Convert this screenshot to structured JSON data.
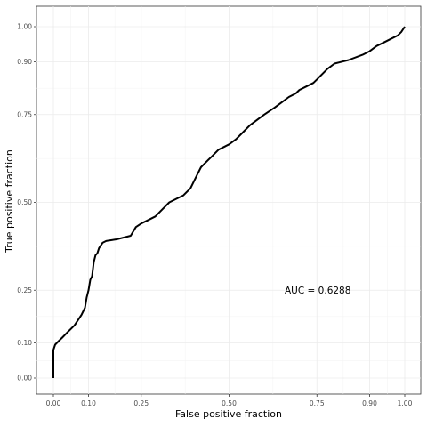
{
  "chart_data": {
    "type": "line",
    "title": "",
    "xlabel": "False positive fraction",
    "ylabel": "True positive fraction",
    "xlim": [
      0,
      1
    ],
    "ylim": [
      0,
      1
    ],
    "x_ticks": [
      0.0,
      0.1,
      0.25,
      0.5,
      0.75,
      0.9,
      1.0
    ],
    "y_ticks": [
      0.0,
      0.1,
      0.25,
      0.5,
      0.75,
      0.9,
      1.0
    ],
    "x_tick_labels": [
      "0.00",
      "0.10",
      "0.25",
      "0.50",
      "0.75",
      "0.90",
      "1.00"
    ],
    "y_tick_labels": [
      "0.00",
      "0.10",
      "0.25",
      "0.50",
      "0.75",
      "0.90",
      "1.00"
    ],
    "grid": true,
    "legend": "none",
    "annotation": "AUC = 0.6288",
    "series": [
      {
        "x": [
          0.0,
          0.0,
          0.005,
          0.015,
          0.025,
          0.04,
          0.06,
          0.07,
          0.08,
          0.09,
          0.095,
          0.1,
          0.105,
          0.11,
          0.115,
          0.12,
          0.125,
          0.13,
          0.14,
          0.15,
          0.16,
          0.18,
          0.2,
          0.22,
          0.235,
          0.25,
          0.27,
          0.29,
          0.31,
          0.33,
          0.35,
          0.37,
          0.39,
          0.4,
          0.41,
          0.42,
          0.43,
          0.44,
          0.45,
          0.47,
          0.49,
          0.5,
          0.52,
          0.54,
          0.56,
          0.58,
          0.6,
          0.63,
          0.65,
          0.67,
          0.69,
          0.7,
          0.72,
          0.74,
          0.75,
          0.76,
          0.78,
          0.8,
          0.84,
          0.88,
          0.9,
          0.92,
          0.94,
          0.96,
          0.98,
          0.99,
          1.0
        ],
        "y": [
          0.0,
          0.08,
          0.095,
          0.105,
          0.115,
          0.13,
          0.15,
          0.165,
          0.18,
          0.2,
          0.23,
          0.25,
          0.28,
          0.29,
          0.33,
          0.35,
          0.355,
          0.37,
          0.385,
          0.39,
          0.392,
          0.395,
          0.4,
          0.405,
          0.43,
          0.44,
          0.45,
          0.46,
          0.48,
          0.5,
          0.51,
          0.52,
          0.54,
          0.56,
          0.58,
          0.6,
          0.61,
          0.62,
          0.63,
          0.65,
          0.66,
          0.665,
          0.68,
          0.7,
          0.72,
          0.735,
          0.75,
          0.77,
          0.785,
          0.8,
          0.81,
          0.82,
          0.83,
          0.84,
          0.85,
          0.86,
          0.88,
          0.895,
          0.905,
          0.92,
          0.93,
          0.945,
          0.955,
          0.965,
          0.975,
          0.985,
          1.0
        ]
      }
    ]
  }
}
